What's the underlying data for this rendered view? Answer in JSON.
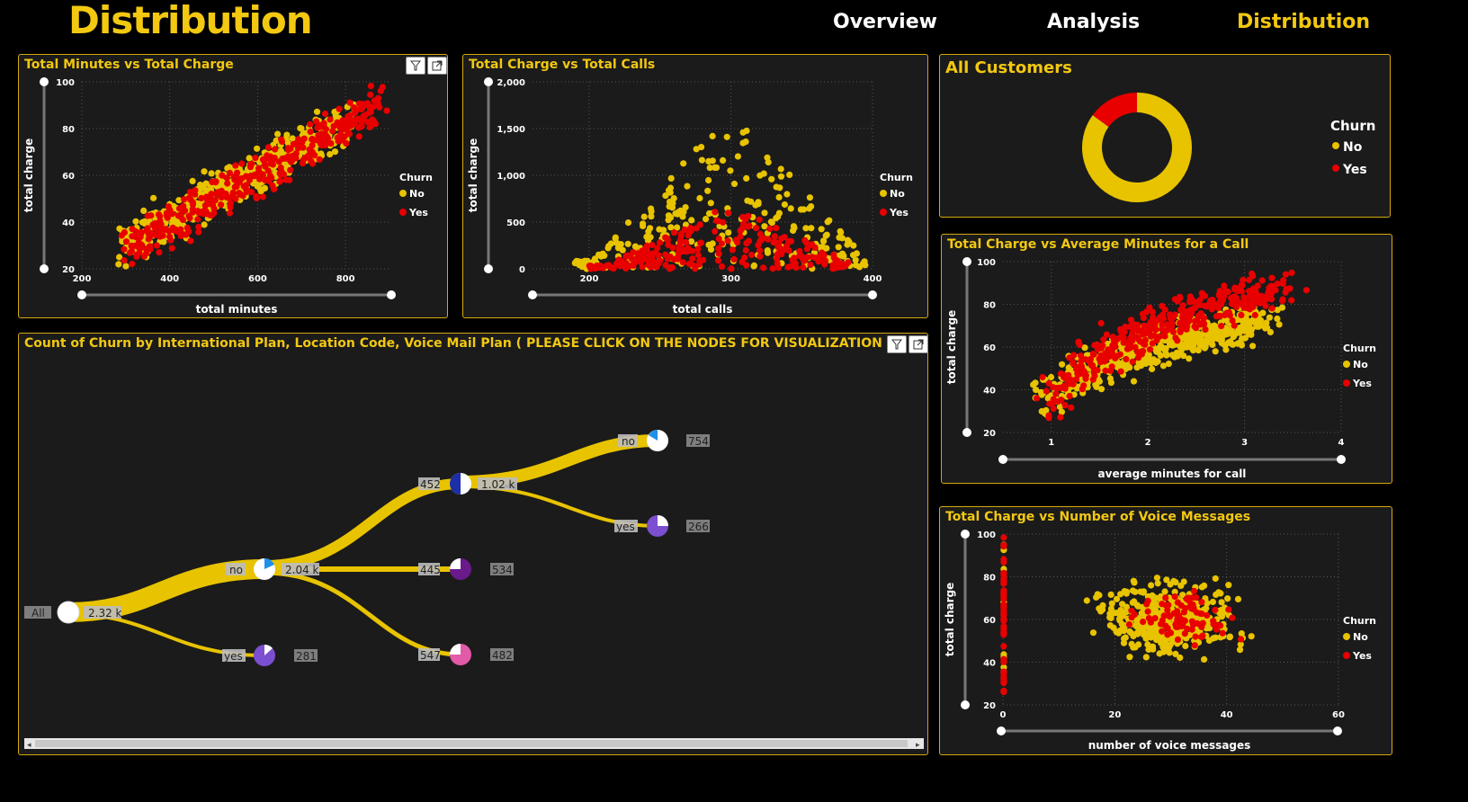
{
  "page": {
    "title": "Distribution"
  },
  "nav": {
    "overview": "Overview",
    "analysis": "Analysis",
    "distribution": "Distribution"
  },
  "colors": {
    "accent": "#f2c811",
    "no": "#e8c300",
    "yes": "#e80000",
    "panel_bg": "#1b1b1b"
  },
  "legend": {
    "title": "Churn",
    "no": "No",
    "yes": "Yes"
  },
  "charts": {
    "minutes_charge": {
      "title": "Total Minutes vs Total Charge",
      "xlabel": "total minutes",
      "ylabel": "total charge",
      "xticks": [
        "200",
        "400",
        "600",
        "800"
      ],
      "yticks": [
        "100",
        "80",
        "60",
        "40",
        "20"
      ]
    },
    "charge_calls": {
      "title": "Total Charge vs Total Calls",
      "xlabel": "total calls",
      "ylabel": "total charge",
      "xticks": [
        "200",
        "300",
        "400"
      ],
      "yticks": [
        "2,000",
        "1,500",
        "1,000",
        "500",
        "0"
      ]
    },
    "all_customers": {
      "title": "All Customers"
    },
    "avg_minutes": {
      "title": "Total Charge vs Average Minutes for a Call",
      "xlabel": "average minutes for call",
      "ylabel": "total charge",
      "xticks": [
        "1",
        "2",
        "3",
        "4"
      ],
      "yticks": [
        "100",
        "80",
        "60",
        "40",
        "20"
      ]
    },
    "voice_msgs": {
      "title": "Total Charge vs Number of Voice Messages",
      "xlabel": "number of voice messages",
      "ylabel": "total charge",
      "xticks": [
        "0",
        "20",
        "40",
        "60"
      ],
      "yticks": [
        "100",
        "80",
        "60",
        "40",
        "20"
      ]
    },
    "tree": {
      "title": "Count of Churn by International Plan, Location Code, Voice Mail Plan ( PLEASE CLICK ON THE NODES FOR VISUALIZATION )",
      "nodes": {
        "root": {
          "label": "All",
          "value": "2.32 k"
        },
        "intl_no": {
          "label": "no",
          "value": "2.04 k"
        },
        "intl_yes": {
          "label": "yes",
          "value": "281"
        },
        "loc_452": {
          "label": "452",
          "value": "1.02 k"
        },
        "loc_445": {
          "label": "445",
          "value": "534"
        },
        "loc_547": {
          "label": "547",
          "value": "482"
        },
        "vm_no": {
          "label": "no",
          "value": "754"
        },
        "vm_yes": {
          "label": "yes",
          "value": "266"
        }
      }
    }
  },
  "chart_data": [
    {
      "type": "scatter",
      "title": "Total Minutes vs Total Charge",
      "xlabel": "total minutes",
      "ylabel": "total charge",
      "xlim": [
        200,
        900
      ],
      "ylim": [
        20,
        100
      ],
      "series": [
        {
          "name": "No",
          "trend": {
            "x": [
              290,
              820
            ],
            "y": [
              30,
              85
            ],
            "spread": 6,
            "n": 520
          }
        },
        {
          "name": "Yes",
          "trend": {
            "x": [
              300,
              880
            ],
            "y": [
              28,
              90
            ],
            "spread": 6,
            "n": 380
          }
        }
      ]
    },
    {
      "type": "scatter",
      "title": "Total Charge vs Total Calls",
      "xlabel": "total calls",
      "ylabel": "total charge",
      "xlim": [
        160,
        400
      ],
      "ylim": [
        0,
        2000
      ],
      "series": [
        {
          "name": "No",
          "peak": {
            "x_center": 300,
            "x_range": [
              190,
              395
            ],
            "y_max": 1700,
            "n": 260
          }
        },
        {
          "name": "Yes",
          "peak": {
            "x_center": 300,
            "x_range": [
              200,
              385
            ],
            "y_max": 700,
            "n": 260
          }
        }
      ]
    },
    {
      "type": "pie",
      "title": "All Customers",
      "labels": [
        "No",
        "Yes"
      ],
      "values": [
        85,
        15
      ]
    },
    {
      "type": "scatter",
      "title": "Total Charge vs Average Minutes for a Call",
      "xlabel": "average minutes for call",
      "ylabel": "total charge",
      "xlim": [
        0.5,
        4
      ],
      "ylim": [
        20,
        100
      ],
      "series": [
        {
          "name": "No",
          "cloud": {
            "x": [
              1.0,
              3.6
            ],
            "y": [
              30,
              78
            ],
            "n": 520
          }
        },
        {
          "name": "Yes",
          "cloud": {
            "x": [
              1.0,
              3.8
            ],
            "y": [
              28,
              95
            ],
            "n": 380
          }
        }
      ]
    },
    {
      "type": "scatter",
      "title": "Total Charge vs Number of Voice Messages",
      "xlabel": "number of voice messages",
      "ylabel": "total charge",
      "xlim": [
        0,
        60
      ],
      "ylim": [
        20,
        100
      ],
      "series": [
        {
          "name": "No",
          "cloud": {
            "x_center": 30,
            "x_sd": 8,
            "y_center": 60,
            "y_sd": 10,
            "n": 420
          }
        },
        {
          "name": "Yes",
          "cloud": {
            "x_center": 32,
            "x_sd": 6,
            "y_center": 60,
            "y_sd": 8,
            "n": 90
          },
          "zero_column": {
            "x": 0,
            "y": [
              25,
              100
            ]
          }
        }
      ]
    }
  ]
}
